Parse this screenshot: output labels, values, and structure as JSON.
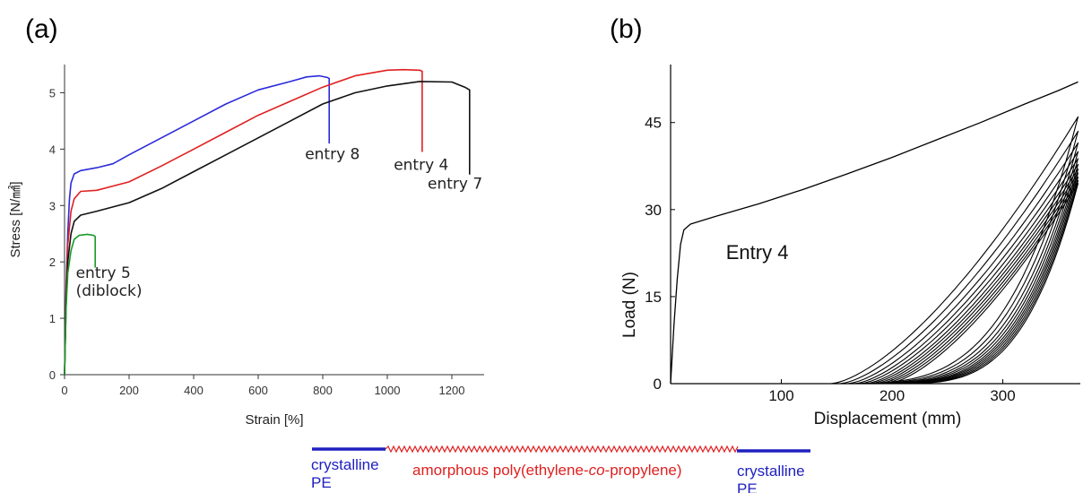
{
  "panel_a_label": "(a)",
  "panel_b_label": "(b)",
  "chart_data": [
    {
      "type": "line",
      "title": "",
      "xlabel": "Strain [%]",
      "ylabel": "Stress [N/㎟]",
      "xlim": [
        0,
        1300
      ],
      "ylim": [
        0,
        5.5
      ],
      "xticks": [
        "0",
        "200",
        "400",
        "600",
        "800",
        "1000",
        "1200"
      ],
      "yticks": [
        "0",
        "1",
        "2",
        "3",
        "4",
        "5"
      ],
      "grid": false,
      "series": [
        {
          "color": "#2b2bd9",
          "points": [
            [
              0,
              0
            ],
            [
              5,
              1.6
            ],
            [
              10,
              2.5
            ],
            [
              15,
              3.1
            ],
            [
              20,
              3.4
            ],
            [
              30,
              3.56
            ],
            [
              50,
              3.62
            ],
            [
              100,
              3.67
            ],
            [
              150,
              3.74
            ],
            [
              200,
              3.9
            ],
            [
              300,
              4.2
            ],
            [
              400,
              4.5
            ],
            [
              500,
              4.8
            ],
            [
              600,
              5.05
            ],
            [
              700,
              5.2
            ],
            [
              750,
              5.28
            ],
            [
              790,
              5.3
            ],
            [
              815,
              5.27
            ],
            [
              820,
              5.25
            ],
            [
              820,
              4.1
            ]
          ]
        },
        {
          "color": "#e02020",
          "points": [
            [
              0,
              0
            ],
            [
              5,
              1.5
            ],
            [
              10,
              2.3
            ],
            [
              20,
              2.9
            ],
            [
              30,
              3.12
            ],
            [
              50,
              3.25
            ],
            [
              100,
              3.27
            ],
            [
              200,
              3.42
            ],
            [
              300,
              3.7
            ],
            [
              400,
              4.0
            ],
            [
              500,
              4.3
            ],
            [
              600,
              4.6
            ],
            [
              700,
              4.85
            ],
            [
              800,
              5.1
            ],
            [
              900,
              5.3
            ],
            [
              1000,
              5.4
            ],
            [
              1050,
              5.41
            ],
            [
              1100,
              5.4
            ],
            [
              1108,
              5.38
            ],
            [
              1108,
              3.95
            ]
          ]
        },
        {
          "color": "#111111",
          "points": [
            [
              0,
              0
            ],
            [
              5,
              1.3
            ],
            [
              10,
              2.0
            ],
            [
              20,
              2.5
            ],
            [
              30,
              2.72
            ],
            [
              50,
              2.83
            ],
            [
              100,
              2.9
            ],
            [
              200,
              3.05
            ],
            [
              300,
              3.3
            ],
            [
              400,
              3.6
            ],
            [
              500,
              3.9
            ],
            [
              600,
              4.2
            ],
            [
              700,
              4.5
            ],
            [
              800,
              4.8
            ],
            [
              900,
              5.0
            ],
            [
              1000,
              5.12
            ],
            [
              1100,
              5.2
            ],
            [
              1200,
              5.19
            ],
            [
              1240,
              5.1
            ],
            [
              1255,
              5.05
            ],
            [
              1255,
              3.55
            ]
          ]
        },
        {
          "color": "#1a9a2a",
          "points": [
            [
              0,
              0
            ],
            [
              5,
              1.2
            ],
            [
              10,
              1.8
            ],
            [
              20,
              2.2
            ],
            [
              30,
              2.4
            ],
            [
              45,
              2.47
            ],
            [
              70,
              2.49
            ],
            [
              90,
              2.47
            ],
            [
              95,
              2.45
            ],
            [
              95,
              1.9
            ]
          ]
        }
      ],
      "annotations": [
        {
          "text": "entry 8",
          "x": 745,
          "y": 3.82
        },
        {
          "text": "entry 4",
          "x": 1020,
          "y": 3.63
        },
        {
          "text": "entry 7",
          "x": 1125,
          "y": 3.3
        },
        {
          "text": "entry 5",
          "x": 35,
          "y": 1.72
        },
        {
          "text": "(diblock)",
          "x": 35,
          "y": 1.4
        }
      ]
    },
    {
      "type": "line",
      "title": "",
      "xlabel": "Displacement (mm)",
      "ylabel": "Load (N)",
      "xlim": [
        0,
        370
      ],
      "ylim": [
        0,
        55
      ],
      "xticks": [
        "100",
        "200",
        "300"
      ],
      "yticks": [
        "0",
        "15",
        "30",
        "45"
      ],
      "grid": false,
      "series": [
        {
          "color": "#000000",
          "points": [
            [
              0,
              0
            ],
            [
              3,
              10
            ],
            [
              6,
              18
            ],
            [
              9,
              24
            ],
            [
              12,
              26.5
            ],
            [
              18,
              27.5
            ],
            [
              40,
              28.8
            ],
            [
              80,
              31
            ],
            [
              120,
              33.5
            ],
            [
              160,
              36.2
            ],
            [
              200,
              39
            ],
            [
              240,
              42
            ],
            [
              280,
              45
            ],
            [
              320,
              48.2
            ],
            [
              350,
              50.5
            ],
            [
              368,
              52
            ]
          ]
        }
      ],
      "cycles": [
        {
          "start": 145,
          "end": 368,
          "top": 46
        },
        {
          "start": 153,
          "end": 368,
          "top": 43.5
        },
        {
          "start": 160,
          "end": 368,
          "top": 41.5
        },
        {
          "start": 166,
          "end": 368,
          "top": 40
        },
        {
          "start": 171,
          "end": 368,
          "top": 38.8
        },
        {
          "start": 176,
          "end": 368,
          "top": 37.8
        },
        {
          "start": 180,
          "end": 368,
          "top": 37
        },
        {
          "start": 184,
          "end": 368,
          "top": 36.3
        },
        {
          "start": 188,
          "end": 368,
          "top": 35.6
        },
        {
          "start": 192,
          "end": 368,
          "top": 35
        },
        {
          "start": 196,
          "end": 368,
          "top": 34.5
        }
      ],
      "annotations": [
        {
          "text": "Entry 4",
          "x": 50,
          "y": 21.5
        }
      ]
    }
  ],
  "schematic": {
    "block1_line1": "crystalline",
    "block1_line2": "PE",
    "middle_label": "amorphous poly(ethylene-co-propylene)",
    "middle_prefix": "amorphous poly(ethylene-",
    "middle_italic": "co",
    "middle_suffix": "-propylene)",
    "block2_line1": "crystalline",
    "block2_line2": "PE",
    "pe_color": "#2020c0",
    "amorphous_color": "#e02020"
  }
}
